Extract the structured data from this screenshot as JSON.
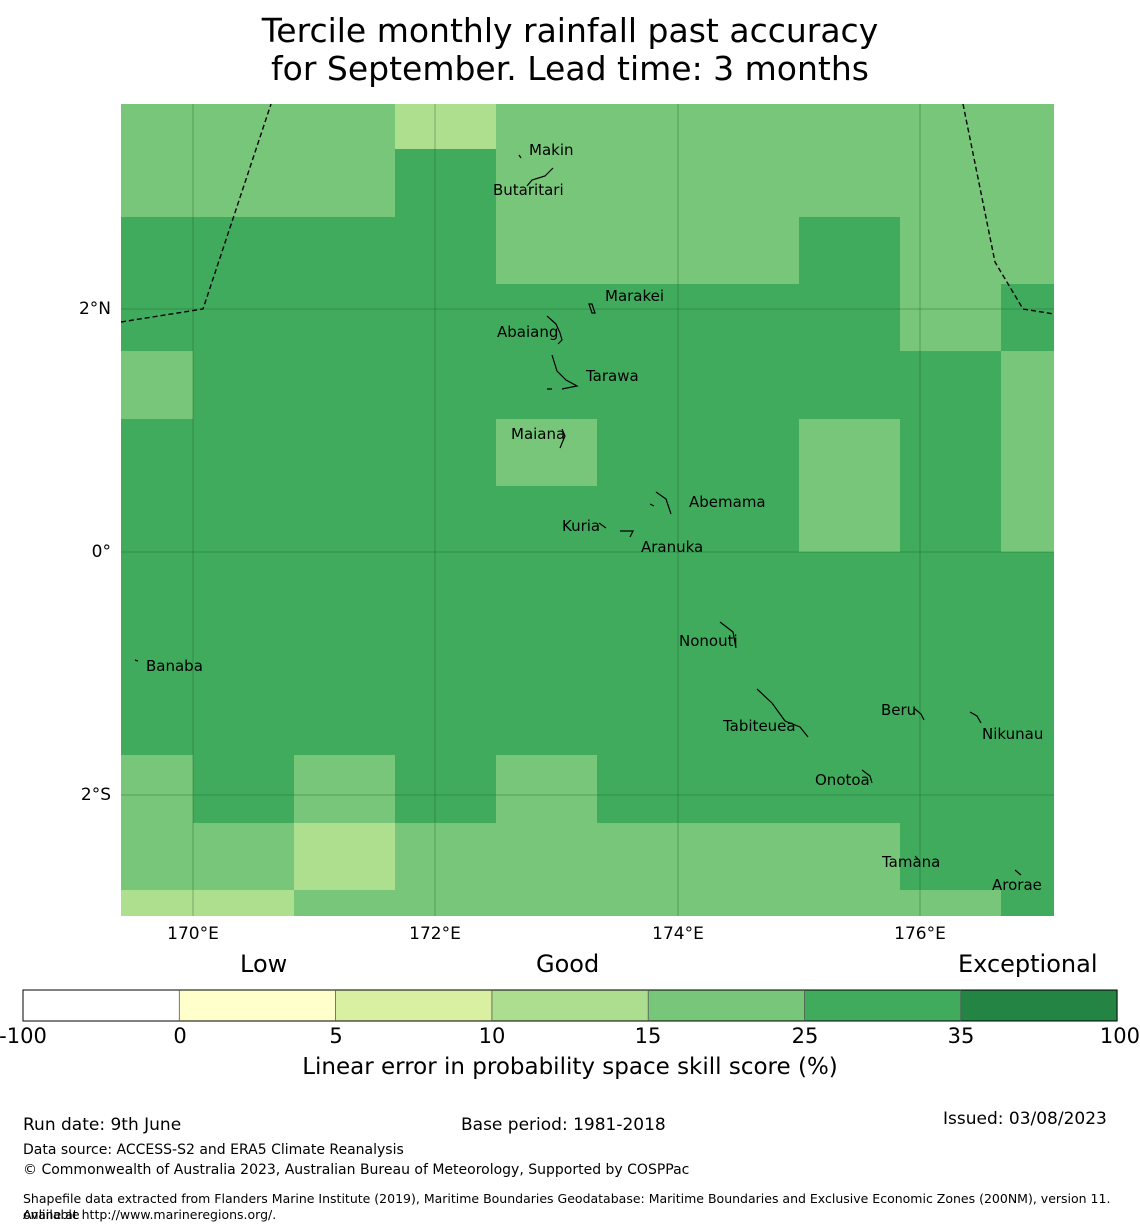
{
  "title_line1": "Tercile monthly rainfall past accuracy",
  "title_line2": "for September. Lead time: 3 months",
  "map": {
    "lat_labels": [
      "2°N",
      "0°",
      "2°S"
    ],
    "lon_labels": [
      "170°E",
      "172°E",
      "174°E",
      "176°E"
    ],
    "islands": [
      "Makin",
      "Butaritari",
      "Marakei",
      "Abaiang",
      "Tarawa",
      "Maiana",
      "Abemama",
      "Kuria",
      "Aranuka",
      "Nonouti",
      "Banaba",
      "Tabiteuea",
      "Beru",
      "Nikunau",
      "Onotoa",
      "Tamana",
      "Arorae"
    ],
    "colors": {
      "band_5_10": "#dbeea3",
      "band_10_15": "#addf8e",
      "band_15_25": "#78c679",
      "band_25_35": "#41ab5d",
      "band_35_100": "#238443"
    }
  },
  "colorbar": {
    "category_labels": [
      "Low",
      "Good",
      "Exceptional"
    ],
    "ticks": [
      "-100",
      "0",
      "5",
      "10",
      "15",
      "25",
      "35",
      "100"
    ],
    "colors": [
      "#ffffff",
      "#ffffcc",
      "#d9f0a3",
      "#addd8e",
      "#78c679",
      "#41ab5d",
      "#238443"
    ],
    "title": "Linear error in probability space skill score (%)"
  },
  "footer": {
    "run_date": "Run date: 9th June",
    "base_period": "Base period: 1981-2018",
    "issued": "Issued: 03/08/2023",
    "data_source": "Data source: ACCESS-S2 and ERA5 Climate Reanalysis",
    "copyright": "© Commonwealth of Australia 2023, Australian Bureau of Meteorology, Supported by COSPPac",
    "shapefile_line1": "Shapefile data extracted from Flanders Marine Institute (2019), Maritime Boundaries Geodatabase: Maritime Boundaries and Exclusive Economic Zones (200NM), version 11. Available",
    "shapefile_line2": "online at http://www.marineregions.org/."
  }
}
